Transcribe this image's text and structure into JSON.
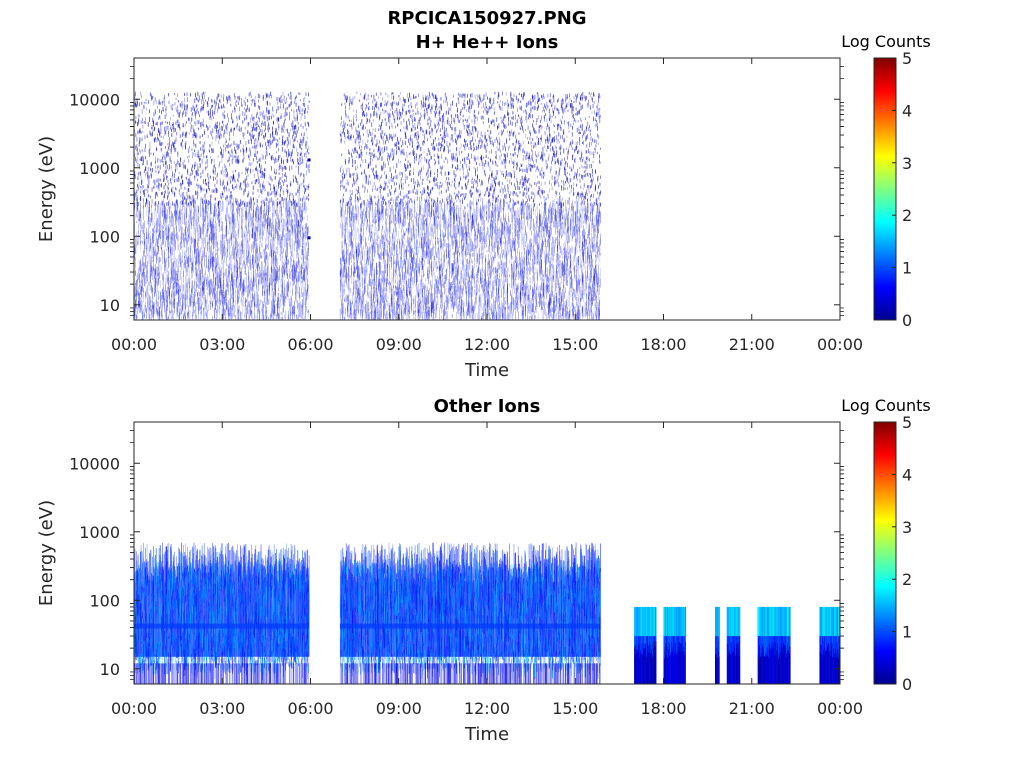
{
  "figure": {
    "title_line1": "RPCICA150927.PNG",
    "title_line2": "H+ He++ Ions"
  },
  "colors": {
    "colormap": [
      "#00008f",
      "#0000ff",
      "#0080ff",
      "#00ffff",
      "#80ff80",
      "#ffff00",
      "#ff8000",
      "#ff0000",
      "#800000"
    ],
    "axes": "#262626"
  },
  "chart_data": [
    {
      "type": "heatmap",
      "title": "",
      "xlabel": "Time",
      "ylabel": "Energy (eV)",
      "xticks": [
        "00:00",
        "03:00",
        "06:00",
        "09:00",
        "12:00",
        "15:00",
        "18:00",
        "21:00",
        "00:00"
      ],
      "xlim_hours": [
        0,
        24
      ],
      "yscale": "log",
      "ylim": [
        6,
        40000
      ],
      "yticks": [
        10,
        100,
        1000,
        10000
      ],
      "ytick_labels": [
        "10",
        "100",
        "1000",
        "10000"
      ],
      "colorbar": {
        "label": "Log Counts",
        "ticks": [
          "0",
          "1",
          "2",
          "3",
          "4",
          "5"
        ],
        "range": [
          0,
          5
        ]
      },
      "data_intervals_hours": [
        [
          0.0,
          5.95
        ],
        [
          7.0,
          15.85
        ]
      ],
      "dominant_energy_band_eV": [
        40,
        300
      ],
      "max_energy_eV": 13000,
      "typical_log_counts": [
        0,
        1
      ],
      "features": [
        {
          "time_hours": 5.95,
          "energy_eV": 1300,
          "log_counts": 0.2
        },
        {
          "time_hours": 5.95,
          "energy_eV": 95,
          "log_counts": 0.2
        }
      ]
    },
    {
      "type": "heatmap",
      "title": "Other Ions",
      "xlabel": "Time",
      "ylabel": "Energy (eV)",
      "xticks": [
        "00:00",
        "03:00",
        "06:00",
        "09:00",
        "12:00",
        "15:00",
        "18:00",
        "21:00",
        "00:00"
      ],
      "xlim_hours": [
        0,
        24
      ],
      "yscale": "log",
      "ylim": [
        6,
        40000
      ],
      "yticks": [
        10,
        100,
        1000,
        10000
      ],
      "ytick_labels": [
        "10",
        "100",
        "1000",
        "10000"
      ],
      "colorbar": {
        "label": "Log Counts",
        "ticks": [
          "0",
          "1",
          "2",
          "3",
          "4",
          "5"
        ],
        "range": [
          0,
          5
        ]
      },
      "data_intervals_hours": [
        [
          0.0,
          5.95
        ],
        [
          7.0,
          15.85
        ]
      ],
      "dominant_energy_band_eV": [
        15,
        500
      ],
      "persistent_line_eV": 42,
      "typical_log_counts": [
        0.5,
        1.8
      ],
      "blocks": [
        {
          "t0_hours": 17.0,
          "t1_hours": 17.75,
          "emax_eV": 80
        },
        {
          "t0_hours": 18.0,
          "t1_hours": 18.75,
          "emax_eV": 80
        },
        {
          "t0_hours": 19.75,
          "t1_hours": 19.9,
          "emax_eV": 80
        },
        {
          "t0_hours": 20.15,
          "t1_hours": 20.6,
          "emax_eV": 80
        },
        {
          "t0_hours": 21.2,
          "t1_hours": 22.3,
          "emax_eV": 80
        },
        {
          "t0_hours": 23.3,
          "t1_hours": 24.0,
          "emax_eV": 80
        }
      ]
    }
  ]
}
